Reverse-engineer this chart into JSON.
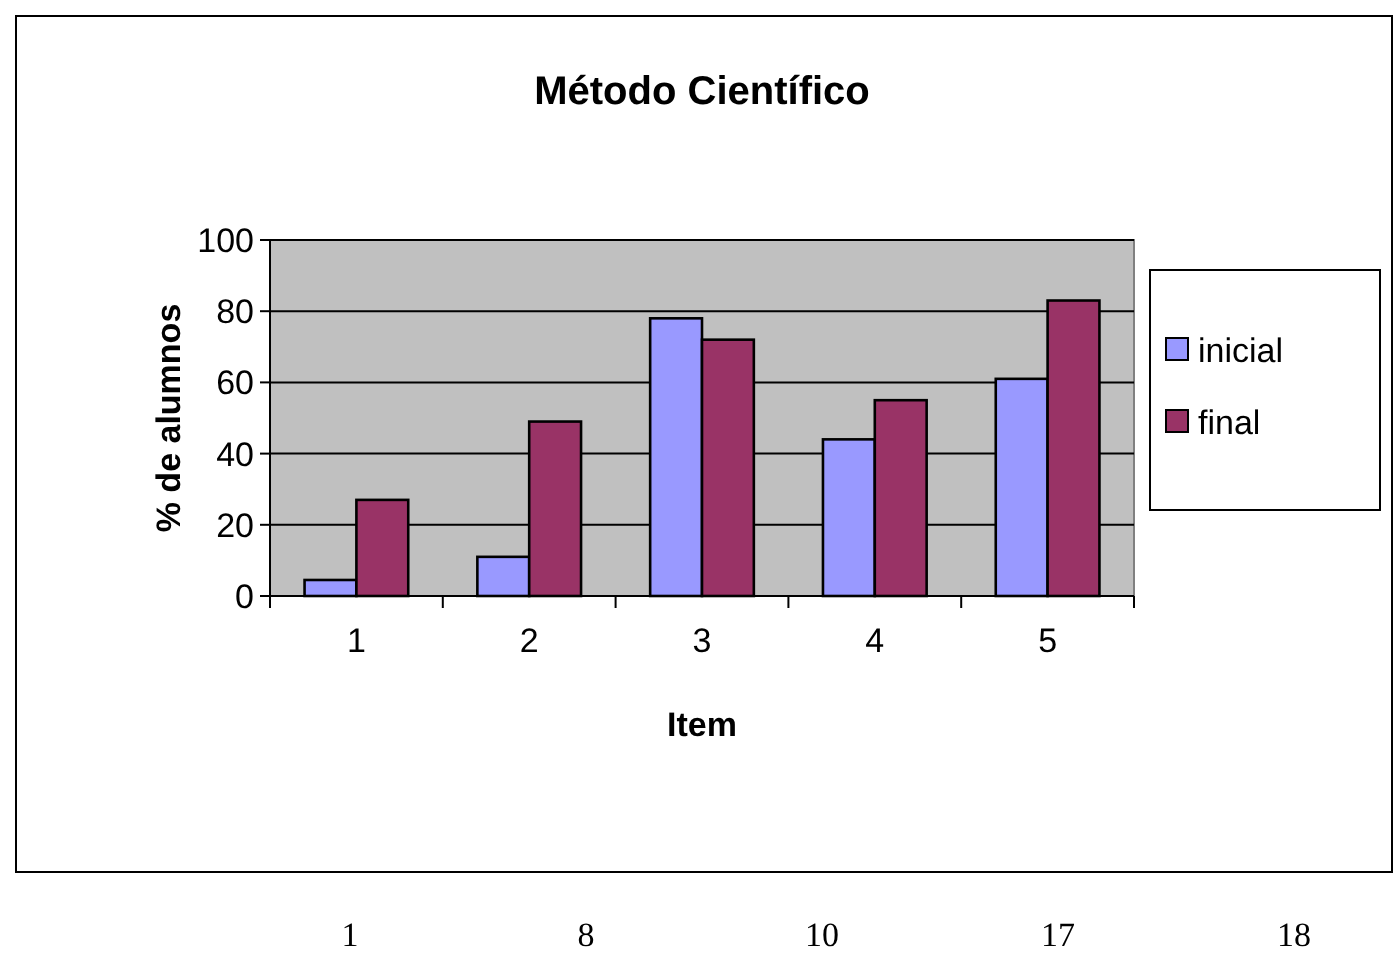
{
  "chart_data": {
    "type": "bar",
    "title": "Método Científico",
    "xlabel": "Item",
    "ylabel": "% de alumnos",
    "categories": [
      "1",
      "2",
      "3",
      "4",
      "5"
    ],
    "series": [
      {
        "name": "inicial",
        "color": "#9999ff",
        "values": [
          4.5,
          11,
          78,
          44,
          61
        ]
      },
      {
        "name": "final",
        "color": "#993366",
        "values": [
          27,
          49,
          72,
          55,
          83
        ]
      }
    ],
    "ylim": [
      0,
      100
    ],
    "yticks": [
      0,
      20,
      40,
      60,
      80,
      100
    ],
    "grid": "y",
    "legend": "right",
    "annotations": [
      "1",
      "8",
      "10",
      "17",
      "18"
    ]
  }
}
